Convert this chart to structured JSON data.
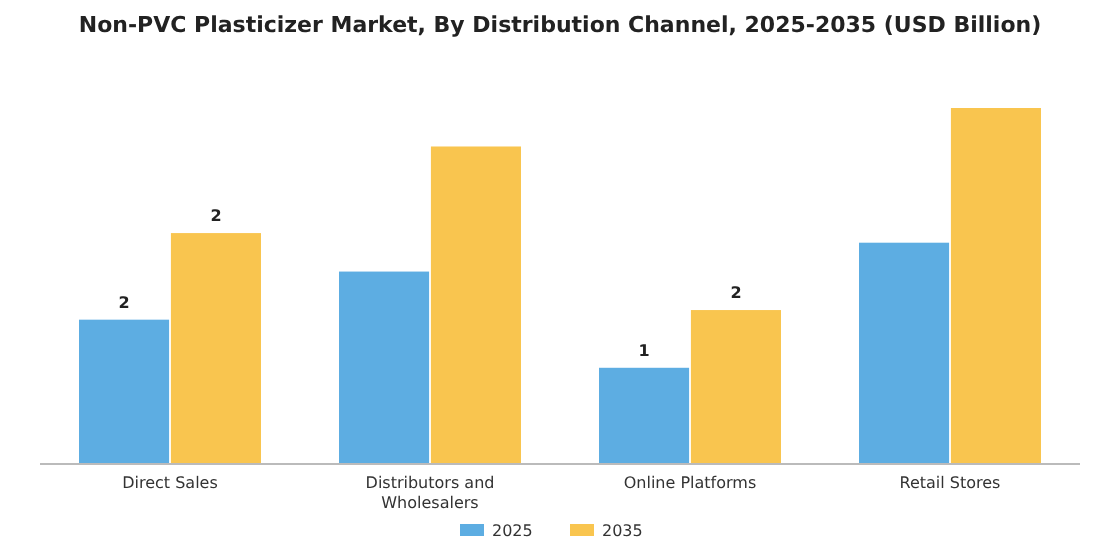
{
  "chart_data": {
    "type": "bar",
    "title": "Non-PVC Plasticizer Market, By Distribution Channel, 2025-2035 (USD Billion)",
    "categories": [
      "Direct Sales",
      "Distributors and Wholesalers",
      "Online Platforms",
      "Retail Stores"
    ],
    "legend": "bottom",
    "series": [
      {
        "name": "2025",
        "color": "#5dade2",
        "values": [
          1.5,
          2.0,
          1.0,
          2.3
        ],
        "value_labels": [
          "2",
          null,
          "1",
          null
        ]
      },
      {
        "name": "2035",
        "color": "#f9c54f",
        "values": [
          2.4,
          3.3,
          1.6,
          3.7
        ],
        "value_labels": [
          "2",
          null,
          "2",
          null
        ]
      }
    ]
  }
}
